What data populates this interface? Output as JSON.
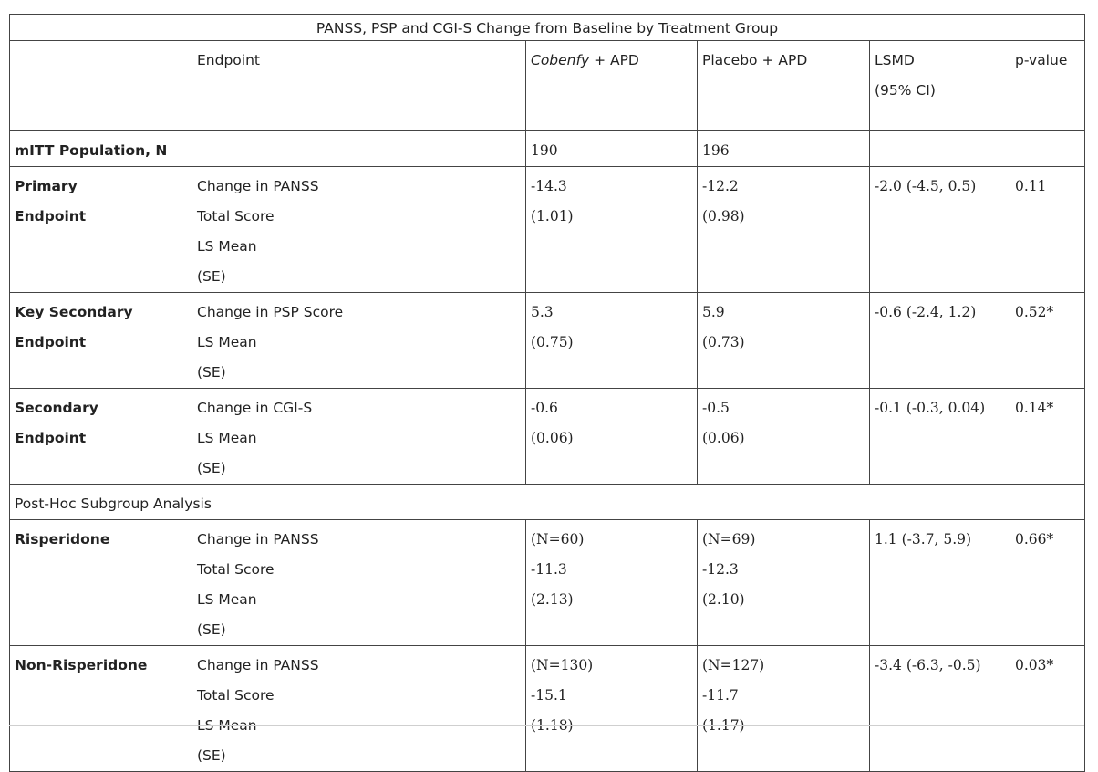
{
  "table": {
    "caption": "PANSS, PSP and CGI-S Change from Baseline by Treatment Group",
    "headers": {
      "endpoint": "Endpoint",
      "drug_name": "Cobenfy",
      "drug_suffix": " + APD",
      "placebo": "Placebo + APD",
      "lsmd": "LSMD",
      "lsmd_ci": "(95% CI)",
      "pvalue": "p-value"
    },
    "mitt": {
      "label": "mITT Population, N",
      "drug_n": "190",
      "placebo_n": "196"
    },
    "rows": [
      {
        "label": [
          "Primary",
          "Endpoint"
        ],
        "endpoint": [
          "Change in PANSS",
          "Total Score",
          "LS Mean",
          "(SE)"
        ],
        "drug": [
          "-14.3",
          "(1.01)"
        ],
        "placebo": [
          "-12.2",
          "(0.98)"
        ],
        "lsmd": "-2.0 (-4.5, 0.5)",
        "pvalue": "0.11"
      },
      {
        "label": [
          "Key Secondary",
          "Endpoint"
        ],
        "endpoint": [
          "Change in PSP Score",
          "LS Mean",
          "(SE)"
        ],
        "drug": [
          "5.3",
          "(0.75)"
        ],
        "placebo": [
          "5.9",
          "(0.73)"
        ],
        "lsmd": "-0.6 (-2.4, 1.2)",
        "pvalue": "0.52*"
      },
      {
        "label": [
          "Secondary",
          "Endpoint"
        ],
        "endpoint": [
          "Change in CGI-S",
          "LS Mean",
          "(SE)"
        ],
        "drug": [
          "-0.6",
          "(0.06)"
        ],
        "placebo": [
          "-0.5",
          "(0.06)"
        ],
        "lsmd": "-0.1 (-0.3, 0.04)",
        "pvalue": "0.14*"
      }
    ],
    "subgroup_header": "Post-Hoc Subgroup Analysis",
    "subgroups": [
      {
        "label": [
          "Risperidone"
        ],
        "endpoint": [
          "Change in PANSS",
          "Total Score",
          "LS Mean",
          "(SE)"
        ],
        "drug": [
          "(N=60)",
          "-11.3",
          "(2.13)"
        ],
        "placebo": [
          "(N=69)",
          "-12.3",
          "(2.10)"
        ],
        "lsmd": "1.1 (-3.7, 5.9)",
        "pvalue": "0.66*"
      },
      {
        "label": [
          "Non-Risperidone"
        ],
        "endpoint": [
          "Change in PANSS",
          "Total Score",
          "LS Mean",
          "(SE)"
        ],
        "drug": [
          "(N=130)",
          "-15.1",
          "(1.18)"
        ],
        "placebo": [
          "(N=127)",
          "-11.7",
          "(1.17)"
        ],
        "lsmd": "-3.4 (-6.3, -0.5)",
        "pvalue": "0.03*"
      }
    ]
  }
}
